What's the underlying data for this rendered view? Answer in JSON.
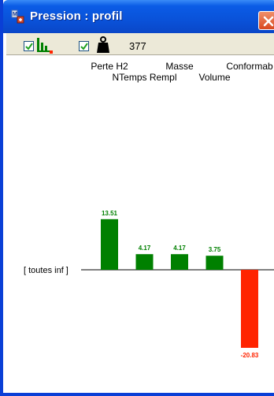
{
  "window": {
    "title": "Pression : profil",
    "app_icon": "mapped-app-icon",
    "close_icon": "close-icon"
  },
  "toolbar": {
    "histogram_checkbox": {
      "checked": true,
      "icon": "histogram-icon"
    },
    "weight_checkbox": {
      "checked": true,
      "icon": "weight-icon"
    },
    "count": "377"
  },
  "colors": {
    "positive": "#008000",
    "negative": "#ff2400",
    "titlebar": "#0a52d9",
    "toolbar": "#ece9d8"
  },
  "chart_data": {
    "type": "bar",
    "baseline_label": "[ toutes inf ]",
    "categories": [
      "Perte H2",
      "NTemps Rempl",
      "Masse",
      "Volume",
      "Conformab"
    ],
    "values": [
      13.51,
      4.17,
      4.17,
      3.75,
      -20.83
    ],
    "value_labels": [
      "13.51",
      "4.17",
      "4.17",
      "3.75",
      "-20.83"
    ]
  }
}
